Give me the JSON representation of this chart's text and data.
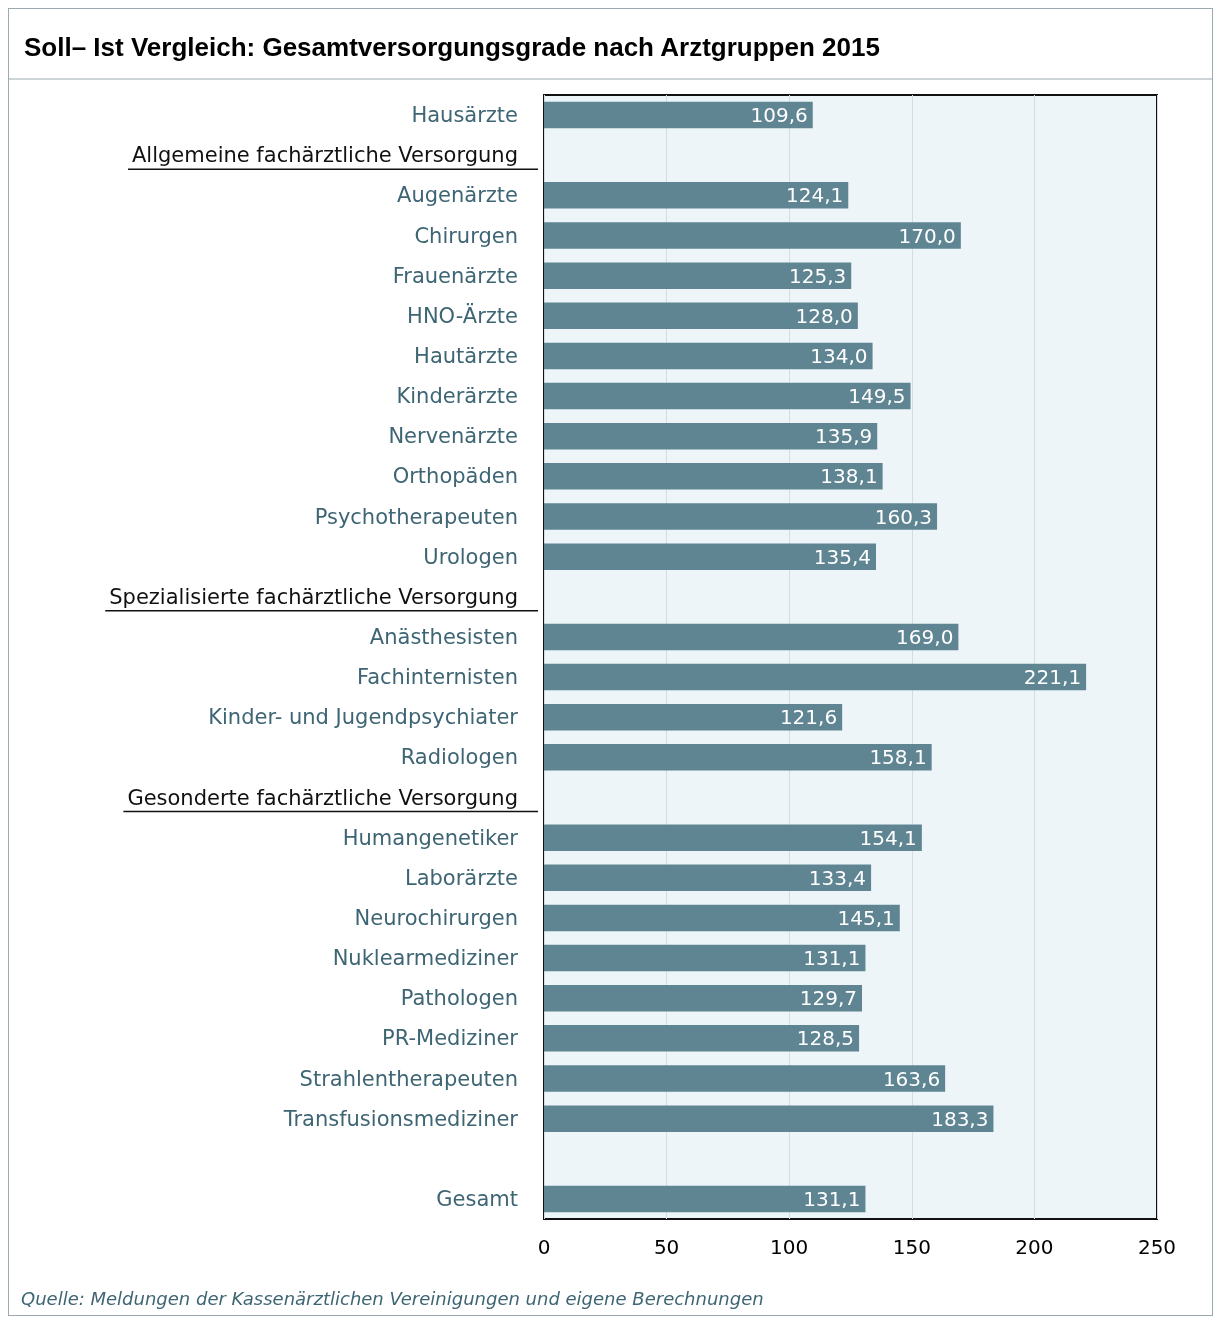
{
  "chart_data": {
    "type": "bar",
    "orientation": "horizontal",
    "title": "Soll– Ist Vergleich: Gesamtversorgungsgrade nach Arztgruppen 2015",
    "categories": [
      "Hausärzte",
      "Allgemeine fachärztliche Versorgung",
      "Augenärzte",
      "Chirurgen",
      "Frauenärzte",
      "HNO-Ärzte",
      "Hautärzte",
      "Kinderärzte",
      "Nervenärzte",
      "Orthopäden",
      "Psychotherapeuten",
      "Urologen",
      "Spezialisierte fachärztliche Versorgung",
      "Anästhesisten",
      "Fachinternisten",
      "Kinder- und Jugendpsychiater",
      "Radiologen",
      "Gesonderte fachärztliche Versorgung",
      "Humangenetiker",
      "Laborärzte",
      "Neurochirurgen",
      "Nuklearmediziner",
      "Pathologen",
      "PR-Mediziner",
      "Strahlentherapeuten",
      "Transfusionsmediziner",
      null,
      "Gesamt"
    ],
    "values": [
      109.6,
      null,
      124.1,
      170.0,
      125.3,
      128.0,
      134.0,
      149.5,
      135.9,
      138.1,
      160.3,
      135.4,
      null,
      169.0,
      221.1,
      121.6,
      158.1,
      null,
      154.1,
      133.4,
      145.1,
      131.1,
      129.7,
      128.5,
      163.6,
      183.3,
      null,
      131.1
    ],
    "value_labels": [
      "109,6",
      null,
      "124,1",
      "170,0",
      "125,3",
      "128,0",
      "134,0",
      "149,5",
      "135,9",
      "138,1",
      "160,3",
      "135,4",
      null,
      "169,0",
      "221,1",
      "121,6",
      "158,1",
      null,
      "154,1",
      "133,4",
      "145,1",
      "131,1",
      "129,7",
      "128,5",
      "163,6",
      "183,3",
      null,
      "131,1"
    ],
    "color": "#5f8593",
    "xlim": [
      0,
      250
    ],
    "xticks": [
      0,
      50,
      100,
      150,
      200,
      250
    ],
    "grid": "x",
    "annotations": [
      "Quelle: Meldungen der Kassenärztlichen Vereinigungen und eigene Berechnungen"
    ]
  }
}
